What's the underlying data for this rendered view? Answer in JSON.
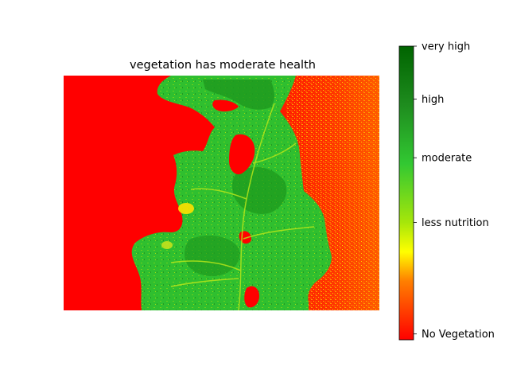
{
  "chart_data": {
    "type": "heatmap",
    "title": "vegetation has moderate health",
    "xlabel": "",
    "ylabel": "",
    "axes_visible": false,
    "grid": false,
    "colorbar": {
      "placement": "right",
      "range": [
        0,
        1
      ],
      "colors": [
        "#ff0000",
        "#ff7f00",
        "#ffff00",
        "#a6e60a",
        "#32c832",
        "#1e8c1e",
        "#006400"
      ],
      "color_stops": [
        0,
        0.2,
        0.3,
        0.4,
        0.6,
        0.8,
        1.0
      ],
      "ticks": [
        {
          "value": 0.02,
          "label": "No Vegetation"
        },
        {
          "value": 0.4,
          "label": "less nutrition"
        },
        {
          "value": 0.62,
          "label": "moderate"
        },
        {
          "value": 0.82,
          "label": "high"
        },
        {
          "value": 1.0,
          "label": "very high"
        }
      ]
    },
    "image_regions": [
      {
        "region": "left field",
        "class": "No Vegetation",
        "ndvi": 0.02
      },
      {
        "region": "central leaf canopy",
        "class": "moderate",
        "ndvi": 0.62
      },
      {
        "region": "right field",
        "class": "No Vegetation",
        "ndvi": 0.15
      }
    ]
  },
  "colors": {
    "no_vegetation": "#ff0000",
    "low": "#ff7f00",
    "mid_low": "#ffff00",
    "less_nutrition": "#a6e60a",
    "moderate": "#32c832",
    "high": "#1e8c1e",
    "very_high": "#006400"
  }
}
